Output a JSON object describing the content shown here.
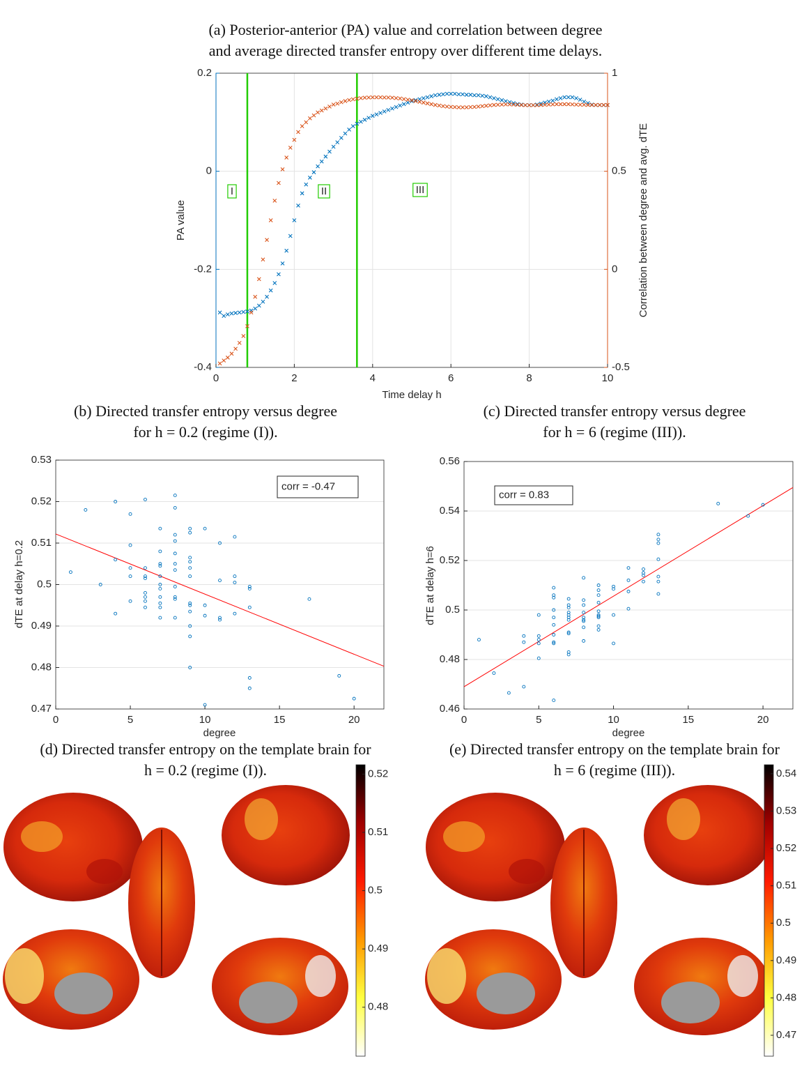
{
  "chart_data": [
    {
      "type": "scatter",
      "title": [
        "(a) Posterior-anterior (PA) value and correlation between degree",
        "and average directed transfer entropy over different time delays."
      ],
      "xlabel": "Time delay h",
      "ylabel": "PA value",
      "y2label": "Correlation between degree and avg. dTE",
      "xlim": [
        0,
        10
      ],
      "xticks": [
        0,
        2,
        4,
        6,
        8,
        10
      ],
      "ylim": [
        -0.4,
        0.2
      ],
      "yticks": [
        -0.4,
        -0.2,
        0,
        0.2
      ],
      "y2lim": [
        -0.5,
        1
      ],
      "y2ticks": [
        -0.5,
        0,
        0.5,
        1
      ],
      "grid": "both",
      "marker": "x",
      "y_color": "#0072bd",
      "y2_color": "#d95319",
      "vlines": [
        0.8,
        3.6
      ],
      "vline_color": "#22cc00",
      "annotations": [
        "I",
        "II",
        "III"
      ],
      "x": [
        0.1,
        0.2,
        0.3,
        0.4,
        0.5,
        0.6,
        0.7,
        0.8,
        0.9,
        1.0,
        1.1,
        1.2,
        1.3,
        1.4,
        1.5,
        1.6,
        1.7,
        1.8,
        1.9,
        2.0,
        2.1,
        2.2,
        2.3,
        2.4,
        2.5,
        2.6,
        2.7,
        2.8,
        2.9,
        3.0,
        3.1,
        3.2,
        3.3,
        3.4,
        3.5,
        3.6,
        3.7,
        3.8,
        3.9,
        4.0,
        4.1,
        4.2,
        4.3,
        4.4,
        4.5,
        4.6,
        4.7,
        4.8,
        4.9,
        5.0,
        5.1,
        5.2,
        5.3,
        5.4,
        5.5,
        5.6,
        5.7,
        5.8,
        5.9,
        6.0,
        6.1,
        6.2,
        6.3,
        6.4,
        6.5,
        6.6,
        6.7,
        6.8,
        6.9,
        7.0,
        7.1,
        7.2,
        7.3,
        7.4,
        7.5,
        7.6,
        7.7,
        7.8,
        7.9,
        8.0,
        8.1,
        8.2,
        8.3,
        8.4,
        8.5,
        8.6,
        8.7,
        8.8,
        8.9,
        9.0,
        9.1,
        9.2,
        9.3,
        9.4,
        9.5,
        9.6,
        9.7,
        9.8,
        9.9,
        10.0
      ],
      "series": [
        {
          "color": "#0072bd",
          "axis": "y",
          "values": [
            -0.288,
            -0.295,
            -0.292,
            -0.29,
            -0.289,
            -0.288,
            -0.287,
            -0.286,
            -0.284,
            -0.28,
            -0.274,
            -0.266,
            -0.256,
            -0.243,
            -0.228,
            -0.21,
            -0.188,
            -0.162,
            -0.132,
            -0.1,
            -0.07,
            -0.045,
            -0.027,
            -0.013,
            -0.002,
            0.01,
            0.02,
            0.03,
            0.04,
            0.05,
            0.059,
            0.068,
            0.077,
            0.085,
            0.092,
            0.097,
            0.101,
            0.105,
            0.109,
            0.113,
            0.116,
            0.119,
            0.122,
            0.125,
            0.128,
            0.131,
            0.134,
            0.137,
            0.14,
            0.143,
            0.145,
            0.147,
            0.149,
            0.151,
            0.153,
            0.155,
            0.156,
            0.157,
            0.158,
            0.158,
            0.158,
            0.157,
            0.157,
            0.156,
            0.156,
            0.155,
            0.155,
            0.154,
            0.153,
            0.151,
            0.149,
            0.147,
            0.145,
            0.143,
            0.141,
            0.139,
            0.137,
            0.136,
            0.135,
            0.135,
            0.135,
            0.136,
            0.138,
            0.14,
            0.142,
            0.144,
            0.147,
            0.149,
            0.151,
            0.151,
            0.151,
            0.149,
            0.146,
            0.142,
            0.139,
            0.136,
            0.135,
            0.135,
            0.135,
            0.135
          ]
        },
        {
          "color": "#d95319",
          "axis": "y2",
          "values": [
            -0.48,
            -0.465,
            -0.45,
            -0.43,
            -0.405,
            -0.375,
            -0.34,
            -0.29,
            -0.22,
            -0.14,
            -0.05,
            0.05,
            0.15,
            0.25,
            0.35,
            0.44,
            0.51,
            0.57,
            0.62,
            0.66,
            0.7,
            0.73,
            0.75,
            0.77,
            0.785,
            0.8,
            0.81,
            0.82,
            0.83,
            0.84,
            0.845,
            0.852,
            0.858,
            0.863,
            0.867,
            0.87,
            0.873,
            0.875,
            0.876,
            0.877,
            0.877,
            0.877,
            0.876,
            0.876,
            0.875,
            0.873,
            0.871,
            0.868,
            0.865,
            0.862,
            0.858,
            0.854,
            0.85,
            0.846,
            0.842,
            0.838,
            0.835,
            0.832,
            0.83,
            0.828,
            0.827,
            0.826,
            0.826,
            0.826,
            0.827,
            0.828,
            0.83,
            0.832,
            0.834,
            0.836,
            0.838,
            0.839,
            0.84,
            0.841,
            0.841,
            0.84,
            0.839,
            0.838,
            0.837,
            0.837,
            0.837,
            0.837,
            0.838,
            0.839,
            0.84,
            0.841,
            0.842,
            0.842,
            0.842,
            0.842,
            0.841,
            0.84,
            0.839,
            0.839,
            0.838,
            0.838,
            0.838,
            0.838,
            0.838,
            0.838
          ]
        }
      ]
    },
    {
      "type": "scatter",
      "title": [
        "(b) Directed transfer entropy versus degree",
        "for h = 0.2 (regime (I))."
      ],
      "xlabel": "degree",
      "ylabel": "dTE at delay h=0.2",
      "xlim": [
        0,
        22
      ],
      "xticks": [
        0,
        5,
        10,
        15,
        20
      ],
      "ylim": [
        0.47,
        0.53
      ],
      "yticks": [
        0.47,
        0.48,
        0.49,
        0.5,
        0.51,
        0.52,
        0.53
      ],
      "grid": "y",
      "marker": "o",
      "color": "#0072bd",
      "annotation": "corr = -0.47",
      "fit_line": {
        "color": "#ff0000",
        "x": [
          0,
          22
        ],
        "values": [
          0.5122,
          0.4803
        ]
      },
      "x": [
        1,
        2,
        3,
        4,
        4,
        4,
        5,
        5,
        5,
        5,
        5,
        6,
        6,
        6,
        6,
        6,
        6,
        6,
        6,
        7,
        7,
        7,
        7,
        7,
        7,
        7,
        7,
        7,
        7,
        7,
        8,
        8,
        8,
        8,
        8,
        8,
        8,
        8,
        8,
        8,
        8,
        9,
        9,
        9,
        9,
        9,
        9,
        9,
        9,
        9,
        9,
        9,
        9,
        10,
        10,
        10,
        10,
        11,
        11,
        11,
        11,
        12,
        12,
        12,
        12,
        13,
        13,
        13,
        13,
        13,
        17,
        19,
        20
      ],
      "values": [
        0.503,
        0.518,
        0.5,
        0.52,
        0.506,
        0.493,
        0.517,
        0.5095,
        0.504,
        0.502,
        0.496,
        0.5205,
        0.504,
        0.502,
        0.5015,
        0.498,
        0.497,
        0.496,
        0.4945,
        0.5135,
        0.508,
        0.505,
        0.5045,
        0.502,
        0.5,
        0.499,
        0.497,
        0.4955,
        0.4945,
        0.492,
        0.5215,
        0.5185,
        0.512,
        0.5105,
        0.5075,
        0.505,
        0.5035,
        0.4995,
        0.497,
        0.4965,
        0.492,
        0.5135,
        0.5125,
        0.5065,
        0.5055,
        0.504,
        0.502,
        0.4955,
        0.495,
        0.4935,
        0.49,
        0.4875,
        0.48,
        0.5135,
        0.495,
        0.4925,
        0.471,
        0.51,
        0.501,
        0.492,
        0.4915,
        0.5115,
        0.502,
        0.5005,
        0.493,
        0.4995,
        0.499,
        0.4945,
        0.4775,
        0.475,
        0.4965,
        0.478,
        0.4725
      ]
    },
    {
      "type": "scatter",
      "title": [
        "(c) Directed transfer entropy versus degree",
        "for h = 6 (regime (III))."
      ],
      "xlabel": "degree",
      "ylabel": "dTE at delay h=6",
      "xlim": [
        0,
        22
      ],
      "xticks": [
        0,
        5,
        10,
        15,
        20
      ],
      "ylim": [
        0.46,
        0.56
      ],
      "yticks": [
        0.46,
        0.48,
        0.5,
        0.52,
        0.54,
        0.56
      ],
      "grid": "y",
      "marker": "o",
      "color": "#0072bd",
      "annotation": "corr = 0.83",
      "fit_line": {
        "color": "#ff0000",
        "x": [
          0,
          22
        ],
        "values": [
          0.469,
          0.5495
        ]
      },
      "x": [
        1,
        2,
        3,
        4,
        4,
        4,
        5,
        5,
        5,
        5,
        5,
        6,
        6,
        6,
        6,
        6,
        6,
        6,
        6,
        6,
        6,
        7,
        7,
        7,
        7,
        7,
        7,
        7,
        7,
        7,
        7,
        7,
        8,
        8,
        8,
        8,
        8,
        8,
        8,
        8,
        8,
        9,
        9,
        9,
        9,
        9,
        9,
        9,
        9,
        9,
        9,
        10,
        10,
        10,
        10,
        11,
        11,
        11,
        11,
        12,
        12,
        12,
        12,
        13,
        13,
        13,
        13,
        13,
        13,
        13,
        17,
        19,
        20
      ],
      "values": [
        0.488,
        0.4745,
        0.4665,
        0.4895,
        0.487,
        0.469,
        0.498,
        0.4895,
        0.488,
        0.4865,
        0.4805,
        0.509,
        0.506,
        0.505,
        0.5,
        0.497,
        0.494,
        0.49,
        0.487,
        0.4865,
        0.4635,
        0.5045,
        0.502,
        0.501,
        0.499,
        0.498,
        0.497,
        0.496,
        0.491,
        0.4905,
        0.483,
        0.482,
        0.513,
        0.504,
        0.502,
        0.499,
        0.497,
        0.496,
        0.4955,
        0.493,
        0.4875,
        0.51,
        0.508,
        0.506,
        0.503,
        0.4995,
        0.498,
        0.4975,
        0.497,
        0.4935,
        0.492,
        0.5095,
        0.5085,
        0.498,
        0.4865,
        0.517,
        0.512,
        0.5075,
        0.5005,
        0.5165,
        0.515,
        0.514,
        0.5115,
        0.5305,
        0.5285,
        0.527,
        0.5205,
        0.5135,
        0.5115,
        0.5065,
        0.543,
        0.538,
        0.5425
      ]
    },
    {
      "type": "colorbar",
      "title": [
        "(d) Directed transfer entropy on the template brain for",
        "h = 0.2 (regime (I))."
      ],
      "ylim": [
        0.4716,
        0.5216
      ],
      "yticks": [
        0.48,
        0.49,
        0.5,
        0.51,
        0.52
      ],
      "colors": [
        "#ffffff",
        "#ffff40",
        "#ff9900",
        "#ff1a00",
        "#a00000",
        "#000000"
      ]
    },
    {
      "type": "colorbar",
      "title": [
        "(e) Directed transfer entropy on the template brain for",
        "h = 6 (regime (III))."
      ],
      "ylim": [
        0.4644,
        0.5424
      ],
      "yticks": [
        0.47,
        0.48,
        0.49,
        0.5,
        0.51,
        0.52,
        0.53,
        0.54
      ],
      "colors": [
        "#ffffff",
        "#ffff40",
        "#ff9900",
        "#ff1a00",
        "#a00000",
        "#000000"
      ]
    }
  ]
}
